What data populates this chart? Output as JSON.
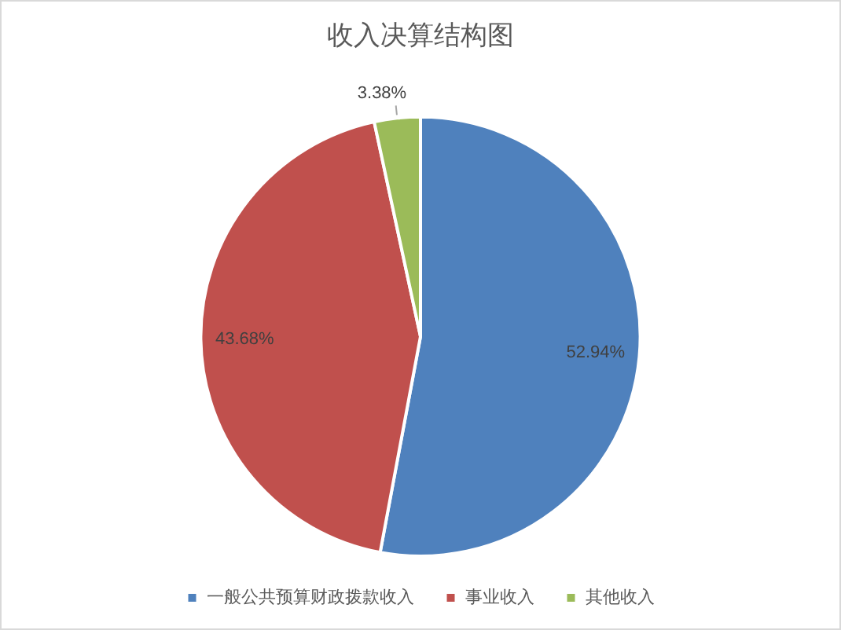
{
  "chart_data": {
    "type": "pie",
    "title": "收入决算结构图",
    "categories": [
      "一般公共预算财政拨款收入",
      "事业收入",
      "其他收入"
    ],
    "values": [
      52.94,
      43.68,
      3.38
    ],
    "colors": [
      "#4f81bd",
      "#c0504d",
      "#9bbb59"
    ],
    "value_labels": [
      "52.94%",
      "43.68%",
      "3.38%"
    ],
    "legend": "bottom"
  }
}
